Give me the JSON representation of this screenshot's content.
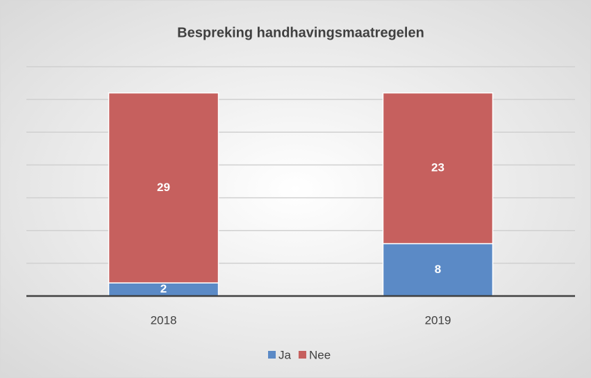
{
  "chart_data": {
    "type": "stacked_bar",
    "title": "Bespreking handhavingsmaatregelen",
    "categories": [
      "2018",
      "2019"
    ],
    "series": [
      {
        "name": "Ja",
        "color": "#5b8ac6",
        "values": [
          2,
          8
        ]
      },
      {
        "name": "Nee",
        "color": "#c6605e",
        "values": [
          29,
          23
        ]
      }
    ],
    "ylim": [
      0,
      35
    ],
    "yticks": [
      0,
      5,
      10,
      15,
      20,
      25,
      30,
      35
    ],
    "grid": true,
    "legend": "bottom"
  }
}
